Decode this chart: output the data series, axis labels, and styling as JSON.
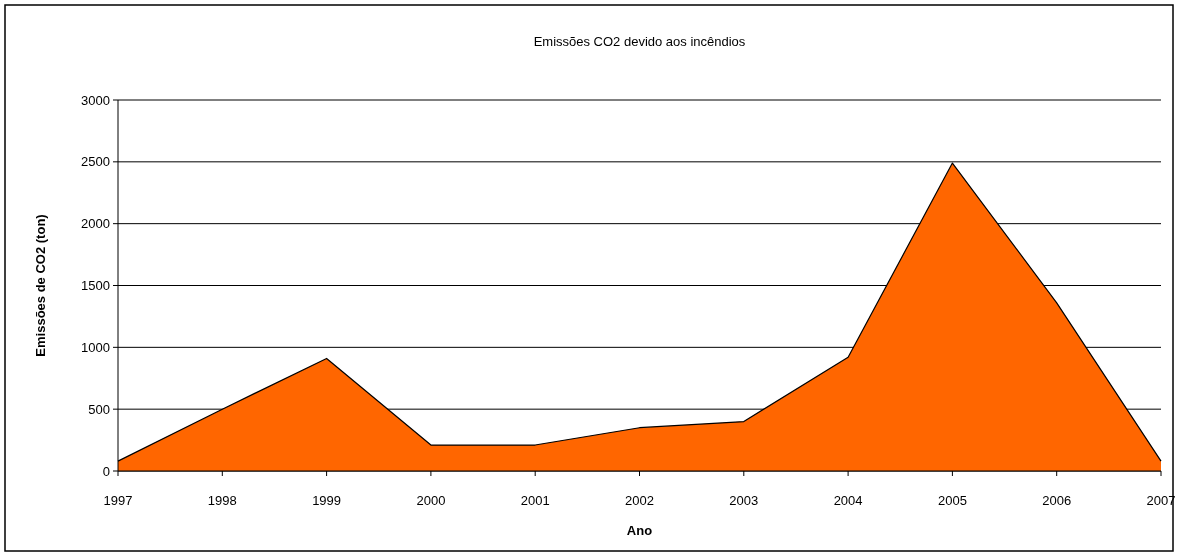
{
  "chart_data": {
    "type": "area",
    "title": "Emissões CO2 devido aos incêndios",
    "xlabel": "Ano",
    "ylabel": "Emissões de CO2 (ton)",
    "categories": [
      "1997",
      "1998",
      "1999",
      "2000",
      "2001",
      "2002",
      "2003",
      "2004",
      "2005",
      "2006",
      "2007"
    ],
    "values": [
      80,
      500,
      910,
      210,
      210,
      350,
      400,
      920,
      2490,
      1360,
      80
    ],
    "color": "#ff6600",
    "ylim": [
      0,
      3000
    ],
    "yticks": [
      0,
      500,
      1000,
      1500,
      2000,
      2500,
      3000
    ],
    "grid": "y"
  }
}
